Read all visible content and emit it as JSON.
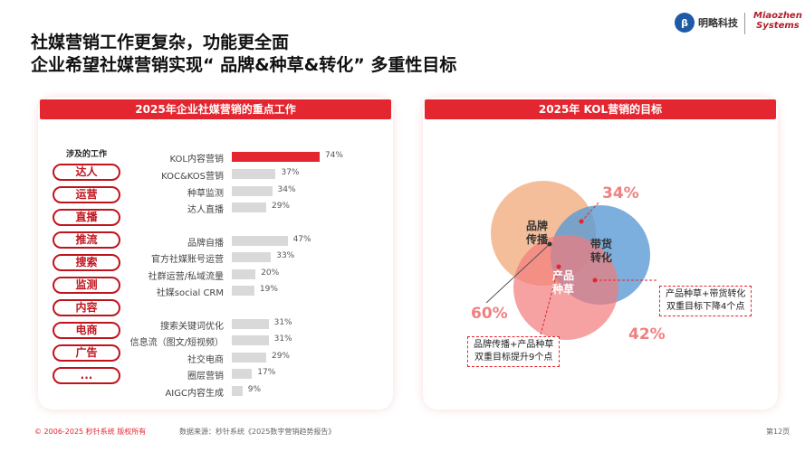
{
  "header": {
    "title_line1": "社媒营销工作更复杂，功能更全面",
    "title_line2": "企业希望社媒营销实现“ 品牌&种草&转化” 多重性目标",
    "logo1": "明略科技",
    "logo2_line1": "Miaozhen",
    "logo2_line2": "Systems"
  },
  "left_panel": {
    "title": "2025年企业社媒营销的重点工作",
    "work_label": "涉及的工作",
    "work_items": [
      "达人",
      "运营",
      "直播",
      "推流",
      "搜索",
      "监测",
      "内容",
      "电商",
      "广告",
      "..."
    ]
  },
  "chart_data": [
    {
      "type": "bar",
      "orientation": "horizontal",
      "title": "2025年企业社媒营销的重点工作",
      "categories": [
        "KOL内容营销",
        "KOC&KOS营销",
        "种草监测",
        "达人直播",
        "品牌自播",
        "官方社媒账号运营",
        "社群运营/私域流量",
        "社媒social CRM",
        "搜索关键词优化",
        "信息流（图文/短视频）",
        "社交电商",
        "圈层营销",
        "AIGC内容生成"
      ],
      "values": [
        74,
        37,
        34,
        29,
        47,
        33,
        20,
        19,
        31,
        31,
        29,
        17,
        9
      ],
      "labels": [
        "74%",
        "37%",
        "34%",
        "29%",
        "47%",
        "33%",
        "20%",
        "19%",
        "31%",
        "31%",
        "29%",
        "17%",
        "9%"
      ],
      "highlight_color": "#e3262f",
      "bar_color": "#d9d9d9"
    },
    {
      "type": "venn",
      "title": "2025年 KOL营销的目标",
      "sets": [
        {
          "name": "品牌传播",
          "value": "60%",
          "color": "#f0a070"
        },
        {
          "name": "带货转化",
          "value": "34%",
          "color": "#5b9bd5"
        },
        {
          "name": "产品种草",
          "value": "42%",
          "color": "#f08080"
        }
      ],
      "annotations": [
        "产品种草+带货转化双重目标下降4个点",
        "品牌传播+产品种草双重目标提升9个点"
      ]
    }
  ],
  "right_panel": {
    "title": "2025年 KOL营销的目标",
    "v1": "品牌",
    "v1b": "传播",
    "v2": "带货",
    "v2b": "转化",
    "v3": "产品",
    "v3b": "种草",
    "p1": "60%",
    "p2": "34%",
    "p3": "42%",
    "note1a": "产品种草+带货转化",
    "note1b": "双重目标下降4个点",
    "note2a": "品牌传播+产品种草",
    "note2b": "双重目标提升9个点"
  },
  "footer": {
    "copyright": "© 2006-2025 秒针系统 版权所有",
    "source": "数据来源：秒针系统《2025数字营销趋势报告》",
    "page": "第12页"
  }
}
